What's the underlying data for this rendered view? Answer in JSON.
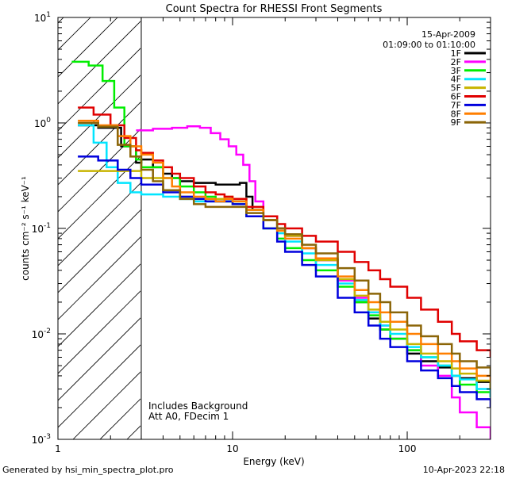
{
  "chart_data": {
    "type": "line",
    "title": "Count Spectra for RHESSI Front Segments",
    "xlabel": "Energy (keV)",
    "ylabel": "counts cm⁻² s⁻¹ keV⁻¹",
    "xscale": "log",
    "yscale": "log",
    "xlim": [
      1,
      300
    ],
    "ylim": [
      0.001,
      10
    ],
    "x_ticks": [
      {
        "value": 1,
        "label": "1"
      },
      {
        "value": 10,
        "label": "10"
      },
      {
        "value": 100,
        "label": "100"
      }
    ],
    "y_ticks": [
      {
        "value": 0.001,
        "base": "10",
        "exp": "-3"
      },
      {
        "value": 0.01,
        "base": "10",
        "exp": "-2"
      },
      {
        "value": 0.1,
        "base": "10",
        "exp": "-1"
      },
      {
        "value": 1,
        "base": "10",
        "exp": "0"
      },
      {
        "value": 10,
        "base": "10",
        "exp": "1"
      }
    ],
    "date": "15-Apr-2009",
    "time_range": "01:09:00 to 01:10:00",
    "excluded_region_keV": [
      1,
      3
    ],
    "annotations": [
      "Includes Background",
      "Att A0, FDecim 1"
    ],
    "series": [
      {
        "name": "1F",
        "color": "#000000",
        "points": [
          [
            1.3,
            0.95
          ],
          [
            1.7,
            0.9
          ],
          [
            2.3,
            0.6
          ],
          [
            2.8,
            0.42
          ],
          [
            3,
            0.45
          ],
          [
            3.5,
            0.38
          ],
          [
            4,
            0.33
          ],
          [
            4.5,
            0.3
          ],
          [
            5,
            0.28
          ],
          [
            6,
            0.27
          ],
          [
            7,
            0.27
          ],
          [
            8,
            0.26
          ],
          [
            9,
            0.26
          ],
          [
            10,
            0.26
          ],
          [
            11,
            0.27
          ],
          [
            12,
            0.2
          ],
          [
            13,
            0.15
          ],
          [
            15,
            0.12
          ],
          [
            18,
            0.1
          ],
          [
            20,
            0.085
          ],
          [
            25,
            0.065
          ],
          [
            30,
            0.05
          ],
          [
            40,
            0.032
          ],
          [
            50,
            0.02
          ],
          [
            60,
            0.014
          ],
          [
            70,
            0.011
          ],
          [
            80,
            0.009
          ],
          [
            100,
            0.0065
          ],
          [
            120,
            0.0055
          ],
          [
            150,
            0.0048
          ],
          [
            180,
            0.004
          ],
          [
            200,
            0.0038
          ],
          [
            250,
            0.0035
          ],
          [
            300,
            0.0025
          ]
        ]
      },
      {
        "name": "2F",
        "color": "#ff00ff",
        "points": [
          [
            2.8,
            0.85
          ],
          [
            3.5,
            0.88
          ],
          [
            4.5,
            0.9
          ],
          [
            5.5,
            0.93
          ],
          [
            6.5,
            0.9
          ],
          [
            7.5,
            0.8
          ],
          [
            8.5,
            0.7
          ],
          [
            9.5,
            0.6
          ],
          [
            10.5,
            0.5
          ],
          [
            11.5,
            0.4
          ],
          [
            12.5,
            0.28
          ],
          [
            13.5,
            0.18
          ],
          [
            15,
            0.13
          ],
          [
            18,
            0.1
          ],
          [
            20,
            0.085
          ],
          [
            25,
            0.065
          ],
          [
            30,
            0.05
          ],
          [
            40,
            0.032
          ],
          [
            50,
            0.022
          ],
          [
            60,
            0.016
          ],
          [
            70,
            0.012
          ],
          [
            80,
            0.009
          ],
          [
            100,
            0.007
          ],
          [
            120,
            0.005
          ],
          [
            150,
            0.004
          ],
          [
            180,
            0.0025
          ],
          [
            200,
            0.0018
          ],
          [
            250,
            0.0013
          ],
          [
            300,
            0.001
          ]
        ]
      },
      {
        "name": "3F",
        "color": "#00ee00",
        "points": [
          [
            1.2,
            3.8
          ],
          [
            1.5,
            3.5
          ],
          [
            1.8,
            2.5
          ],
          [
            2.1,
            1.4
          ],
          [
            2.4,
            0.6
          ],
          [
            2.8,
            0.45
          ],
          [
            3,
            0.38
          ],
          [
            4,
            0.3
          ],
          [
            5,
            0.25
          ],
          [
            6,
            0.22
          ],
          [
            7,
            0.2
          ],
          [
            8,
            0.18
          ],
          [
            9,
            0.18
          ],
          [
            10,
            0.17
          ],
          [
            12,
            0.13
          ],
          [
            15,
            0.1
          ],
          [
            18,
            0.08
          ],
          [
            20,
            0.065
          ],
          [
            25,
            0.05
          ],
          [
            30,
            0.04
          ],
          [
            40,
            0.028
          ],
          [
            50,
            0.02
          ],
          [
            60,
            0.015
          ],
          [
            70,
            0.011
          ],
          [
            80,
            0.009
          ],
          [
            100,
            0.007
          ],
          [
            120,
            0.006
          ],
          [
            150,
            0.005
          ],
          [
            180,
            0.004
          ],
          [
            200,
            0.0033
          ],
          [
            250,
            0.0028
          ],
          [
            300,
            0.0025
          ]
        ]
      },
      {
        "name": "4F",
        "color": "#00e5ff",
        "points": [
          [
            1.3,
            0.95
          ],
          [
            1.6,
            0.65
          ],
          [
            1.9,
            0.38
          ],
          [
            2.2,
            0.27
          ],
          [
            2.6,
            0.22
          ],
          [
            3,
            0.21
          ],
          [
            4,
            0.2
          ],
          [
            5,
            0.19
          ],
          [
            6,
            0.18
          ],
          [
            7,
            0.18
          ],
          [
            8,
            0.18
          ],
          [
            9,
            0.19
          ],
          [
            10,
            0.18
          ],
          [
            12,
            0.15
          ],
          [
            15,
            0.12
          ],
          [
            18,
            0.09
          ],
          [
            20,
            0.075
          ],
          [
            25,
            0.058
          ],
          [
            30,
            0.045
          ],
          [
            40,
            0.03
          ],
          [
            50,
            0.021
          ],
          [
            60,
            0.016
          ],
          [
            70,
            0.012
          ],
          [
            80,
            0.01
          ],
          [
            100,
            0.0075
          ],
          [
            120,
            0.006
          ],
          [
            150,
            0.005
          ],
          [
            180,
            0.004
          ],
          [
            200,
            0.0037
          ],
          [
            250,
            0.003
          ],
          [
            300,
            0.0025
          ]
        ]
      },
      {
        "name": "5F",
        "color": "#c8b400",
        "points": [
          [
            1.3,
            0.35
          ],
          [
            1.7,
            0.35
          ],
          [
            2.2,
            0.35
          ],
          [
            2.6,
            0.35
          ],
          [
            3,
            0.3
          ],
          [
            4,
            0.23
          ],
          [
            5,
            0.2
          ],
          [
            6,
            0.19
          ],
          [
            7,
            0.19
          ],
          [
            8,
            0.19
          ],
          [
            9,
            0.2
          ],
          [
            10,
            0.19
          ],
          [
            12,
            0.15
          ],
          [
            15,
            0.12
          ],
          [
            18,
            0.1
          ],
          [
            20,
            0.085
          ],
          [
            25,
            0.065
          ],
          [
            30,
            0.05
          ],
          [
            40,
            0.033
          ],
          [
            50,
            0.023
          ],
          [
            60,
            0.017
          ],
          [
            70,
            0.013
          ],
          [
            80,
            0.011
          ],
          [
            100,
            0.008
          ],
          [
            120,
            0.0065
          ],
          [
            150,
            0.0055
          ],
          [
            180,
            0.0047
          ],
          [
            200,
            0.0042
          ],
          [
            250,
            0.0036
          ],
          [
            300,
            0.003
          ]
        ]
      },
      {
        "name": "6F",
        "color": "#e00000",
        "points": [
          [
            1.3,
            1.4
          ],
          [
            1.6,
            1.2
          ],
          [
            2,
            0.95
          ],
          [
            2.4,
            0.72
          ],
          [
            2.8,
            0.55
          ],
          [
            3,
            0.52
          ],
          [
            3.5,
            0.44
          ],
          [
            4,
            0.38
          ],
          [
            4.5,
            0.33
          ],
          [
            5,
            0.3
          ],
          [
            6,
            0.25
          ],
          [
            7,
            0.22
          ],
          [
            8,
            0.21
          ],
          [
            9,
            0.2
          ],
          [
            10,
            0.19
          ],
          [
            12,
            0.16
          ],
          [
            15,
            0.13
          ],
          [
            18,
            0.11
          ],
          [
            20,
            0.1
          ],
          [
            25,
            0.085
          ],
          [
            30,
            0.075
          ],
          [
            40,
            0.06
          ],
          [
            50,
            0.048
          ],
          [
            60,
            0.04
          ],
          [
            70,
            0.033
          ],
          [
            80,
            0.028
          ],
          [
            100,
            0.022
          ],
          [
            120,
            0.017
          ],
          [
            150,
            0.013
          ],
          [
            180,
            0.01
          ],
          [
            200,
            0.0085
          ],
          [
            250,
            0.007
          ],
          [
            300,
            0.006
          ]
        ]
      },
      {
        "name": "7F",
        "color": "#0000dd",
        "points": [
          [
            1.3,
            0.48
          ],
          [
            1.7,
            0.44
          ],
          [
            2.2,
            0.36
          ],
          [
            2.6,
            0.3
          ],
          [
            3,
            0.26
          ],
          [
            4,
            0.22
          ],
          [
            5,
            0.2
          ],
          [
            6,
            0.19
          ],
          [
            7,
            0.18
          ],
          [
            8,
            0.18
          ],
          [
            9,
            0.18
          ],
          [
            10,
            0.17
          ],
          [
            12,
            0.13
          ],
          [
            15,
            0.1
          ],
          [
            18,
            0.075
          ],
          [
            20,
            0.06
          ],
          [
            25,
            0.045
          ],
          [
            30,
            0.035
          ],
          [
            40,
            0.022
          ],
          [
            50,
            0.016
          ],
          [
            60,
            0.012
          ],
          [
            70,
            0.009
          ],
          [
            80,
            0.0075
          ],
          [
            100,
            0.0055
          ],
          [
            120,
            0.0045
          ],
          [
            150,
            0.0038
          ],
          [
            180,
            0.0032
          ],
          [
            200,
            0.0028
          ],
          [
            250,
            0.0024
          ],
          [
            300,
            0.002
          ]
        ]
      },
      {
        "name": "8F",
        "color": "#ff7f00",
        "points": [
          [
            1.3,
            1.05
          ],
          [
            1.7,
            0.95
          ],
          [
            2.2,
            0.75
          ],
          [
            2.6,
            0.6
          ],
          [
            3,
            0.5
          ],
          [
            3.5,
            0.42
          ],
          [
            4,
            0.3
          ],
          [
            4.5,
            0.25
          ],
          [
            5,
            0.22
          ],
          [
            6,
            0.2
          ],
          [
            7,
            0.19
          ],
          [
            8,
            0.18
          ],
          [
            9,
            0.19
          ],
          [
            10,
            0.18
          ],
          [
            12,
            0.15
          ],
          [
            15,
            0.12
          ],
          [
            18,
            0.095
          ],
          [
            20,
            0.08
          ],
          [
            25,
            0.065
          ],
          [
            30,
            0.052
          ],
          [
            40,
            0.035
          ],
          [
            50,
            0.026
          ],
          [
            60,
            0.02
          ],
          [
            70,
            0.016
          ],
          [
            80,
            0.013
          ],
          [
            100,
            0.01
          ],
          [
            120,
            0.008
          ],
          [
            150,
            0.0065
          ],
          [
            180,
            0.0055
          ],
          [
            200,
            0.0047
          ],
          [
            250,
            0.004
          ],
          [
            300,
            0.0035
          ]
        ]
      },
      {
        "name": "9F",
        "color": "#8b6508",
        "points": [
          [
            1.3,
            1.0
          ],
          [
            1.7,
            0.92
          ],
          [
            2.2,
            0.62
          ],
          [
            2.6,
            0.48
          ],
          [
            3,
            0.36
          ],
          [
            3.5,
            0.28
          ],
          [
            4,
            0.23
          ],
          [
            5,
            0.19
          ],
          [
            6,
            0.17
          ],
          [
            7,
            0.16
          ],
          [
            8,
            0.16
          ],
          [
            9,
            0.16
          ],
          [
            10,
            0.16
          ],
          [
            12,
            0.14
          ],
          [
            15,
            0.12
          ],
          [
            18,
            0.1
          ],
          [
            20,
            0.088
          ],
          [
            25,
            0.07
          ],
          [
            30,
            0.058
          ],
          [
            40,
            0.042
          ],
          [
            50,
            0.032
          ],
          [
            60,
            0.024
          ],
          [
            70,
            0.02
          ],
          [
            80,
            0.016
          ],
          [
            100,
            0.012
          ],
          [
            120,
            0.0095
          ],
          [
            150,
            0.008
          ],
          [
            180,
            0.0065
          ],
          [
            200,
            0.0055
          ],
          [
            250,
            0.0048
          ],
          [
            300,
            0.004
          ]
        ]
      }
    ]
  },
  "footer": {
    "generated_by": "Generated by hsi_min_spectra_plot.pro",
    "timestamp": "10-Apr-2023 22:18"
  }
}
